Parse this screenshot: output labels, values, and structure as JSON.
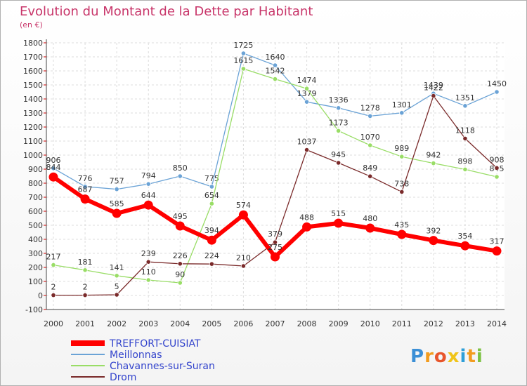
{
  "chart_data": {
    "type": "line",
    "title": "Evolution du Montant de la Dette par Habitant",
    "subtitle": "(en €)",
    "x": [
      "2000",
      "2001",
      "2002",
      "2003",
      "2004",
      "2005",
      "2006",
      "2007",
      "2008",
      "2009",
      "2010",
      "2011",
      "2012",
      "2013",
      "2014"
    ],
    "ylim": [
      -100,
      1800
    ],
    "yticks": [
      -100,
      0,
      100,
      200,
      300,
      400,
      500,
      600,
      700,
      800,
      900,
      1000,
      1100,
      1200,
      1300,
      1400,
      1500,
      1600,
      1700,
      1800
    ],
    "grid": true,
    "legend_position": "bottom-left",
    "series": [
      {
        "name": "TREFFORT-CUISIAT",
        "color": "#ff0000",
        "values": [
          844,
          687,
          585,
          644,
          495,
          394,
          574,
          275,
          488,
          515,
          480,
          435,
          392,
          354,
          317
        ]
      },
      {
        "name": "Meillonnas",
        "color": "#6ba3d6",
        "values": [
          906,
          776,
          757,
          794,
          850,
          775,
          1725,
          1640,
          1379,
          1336,
          1278,
          1301,
          1439,
          1351,
          1450
        ]
      },
      {
        "name": "Chavannes-sur-Suran",
        "color": "#99dd66",
        "values": [
          217,
          181,
          141,
          110,
          90,
          654,
          1615,
          1542,
          1474,
          1173,
          1070,
          989,
          942,
          898,
          845
        ]
      },
      {
        "name": "Drom",
        "color": "#7a2a2a",
        "values": [
          2,
          2,
          5,
          239,
          226,
          224,
          210,
          379,
          1037,
          945,
          849,
          738,
          1422,
          1118,
          908
        ]
      }
    ]
  },
  "logo": {
    "letters": [
      "P",
      "r",
      "o",
      "x",
      "i",
      "t",
      "i"
    ],
    "colors": [
      "#3b8fd6",
      "#f29c1f",
      "#e8552b",
      "#f0c419",
      "#2e9fd8",
      "#f29c1f",
      "#7cc242"
    ]
  }
}
